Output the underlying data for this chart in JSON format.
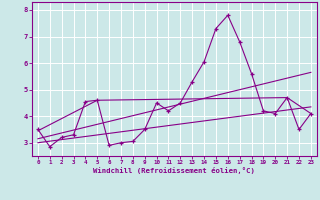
{
  "xlabel": "Windchill (Refroidissement éolien,°C)",
  "xlim": [
    -0.5,
    23.5
  ],
  "ylim": [
    2.5,
    8.3
  ],
  "yticks": [
    3,
    4,
    5,
    6,
    7,
    8
  ],
  "xticks": [
    0,
    1,
    2,
    3,
    4,
    5,
    6,
    7,
    8,
    9,
    10,
    11,
    12,
    13,
    14,
    15,
    16,
    17,
    18,
    19,
    20,
    21,
    22,
    23
  ],
  "bg_color": "#cce8e8",
  "line_color": "#880088",
  "grid_color": "#ffffff",
  "series1_x": [
    0,
    1,
    2,
    3,
    4,
    5,
    6,
    7,
    8,
    9,
    10,
    11,
    12,
    13,
    14,
    15,
    16,
    17,
    18,
    19,
    20,
    21,
    22,
    23
  ],
  "series1_y": [
    3.5,
    2.85,
    3.2,
    3.3,
    4.55,
    4.6,
    2.9,
    3.0,
    3.05,
    3.5,
    4.5,
    4.2,
    4.5,
    5.3,
    6.05,
    7.3,
    7.8,
    6.8,
    5.6,
    4.2,
    4.1,
    4.7,
    3.5,
    4.1
  ],
  "series2_x": [
    0,
    5,
    21,
    23
  ],
  "series2_y": [
    3.45,
    4.6,
    4.7,
    4.1
  ],
  "series3_x": [
    0,
    23
  ],
  "series3_y": [
    3.15,
    5.65
  ],
  "series4_x": [
    0,
    23
  ],
  "series4_y": [
    3.0,
    4.35
  ]
}
